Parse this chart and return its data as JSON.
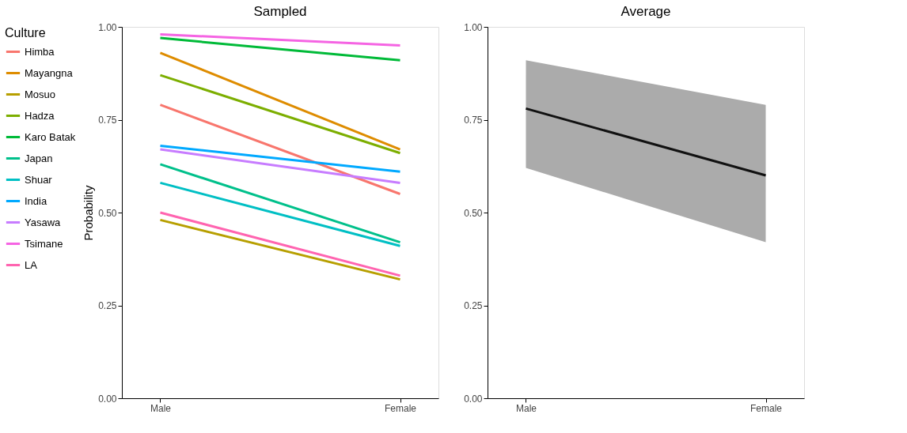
{
  "chart_data": [
    {
      "type": "line",
      "title": "Sampled",
      "ylabel": "Probability",
      "legend_title": "Culture",
      "legend": "left",
      "grid": false,
      "categories": [
        "Male",
        "Female"
      ],
      "ylim": [
        0,
        1
      ],
      "yticks": [
        {
          "value": 0,
          "label": "0.00"
        },
        {
          "value": 0.25,
          "label": "0.25"
        },
        {
          "value": 0.5,
          "label": "0.50"
        },
        {
          "value": 0.75,
          "label": "0.75"
        },
        {
          "value": 1,
          "label": "1.00"
        }
      ],
      "series": [
        {
          "name": "Himba",
          "color": "#f8766d",
          "values": [
            0.79,
            0.55
          ]
        },
        {
          "name": "Mayangna",
          "color": "#de8c00",
          "values": [
            0.93,
            0.67
          ]
        },
        {
          "name": "Mosuo",
          "color": "#b79f00",
          "values": [
            0.48,
            0.32
          ]
        },
        {
          "name": "Hadza",
          "color": "#7cae00",
          "values": [
            0.87,
            0.66
          ]
        },
        {
          "name": "Karo Batak",
          "color": "#00ba38",
          "values": [
            0.97,
            0.91
          ]
        },
        {
          "name": "Japan",
          "color": "#00c08b",
          "values": [
            0.63,
            0.42
          ]
        },
        {
          "name": "Shuar",
          "color": "#00bfc4",
          "values": [
            0.58,
            0.41
          ]
        },
        {
          "name": "India",
          "color": "#00a9ff",
          "values": [
            0.68,
            0.61
          ]
        },
        {
          "name": "Yasawa",
          "color": "#c77cff",
          "values": [
            0.67,
            0.58
          ]
        },
        {
          "name": "Tsimane",
          "color": "#f564e3",
          "values": [
            0.98,
            0.95
          ]
        },
        {
          "name": "LA",
          "color": "#ff64b0",
          "values": [
            0.5,
            0.33
          ]
        }
      ]
    },
    {
      "type": "line",
      "title": "Average",
      "grid": false,
      "categories": [
        "Male",
        "Female"
      ],
      "ylim": [
        0,
        1
      ],
      "yticks": [
        {
          "value": 0,
          "label": "0.00"
        },
        {
          "value": 0.25,
          "label": "0.25"
        },
        {
          "value": 0.5,
          "label": "0.50"
        },
        {
          "value": 0.75,
          "label": "0.75"
        },
        {
          "value": 1,
          "label": "1.00"
        }
      ],
      "series": [
        {
          "color": "#111111",
          "values": [
            0.78,
            0.6
          ],
          "lower": [
            0.62,
            0.42
          ],
          "upper": [
            0.91,
            0.79
          ]
        }
      ]
    }
  ]
}
